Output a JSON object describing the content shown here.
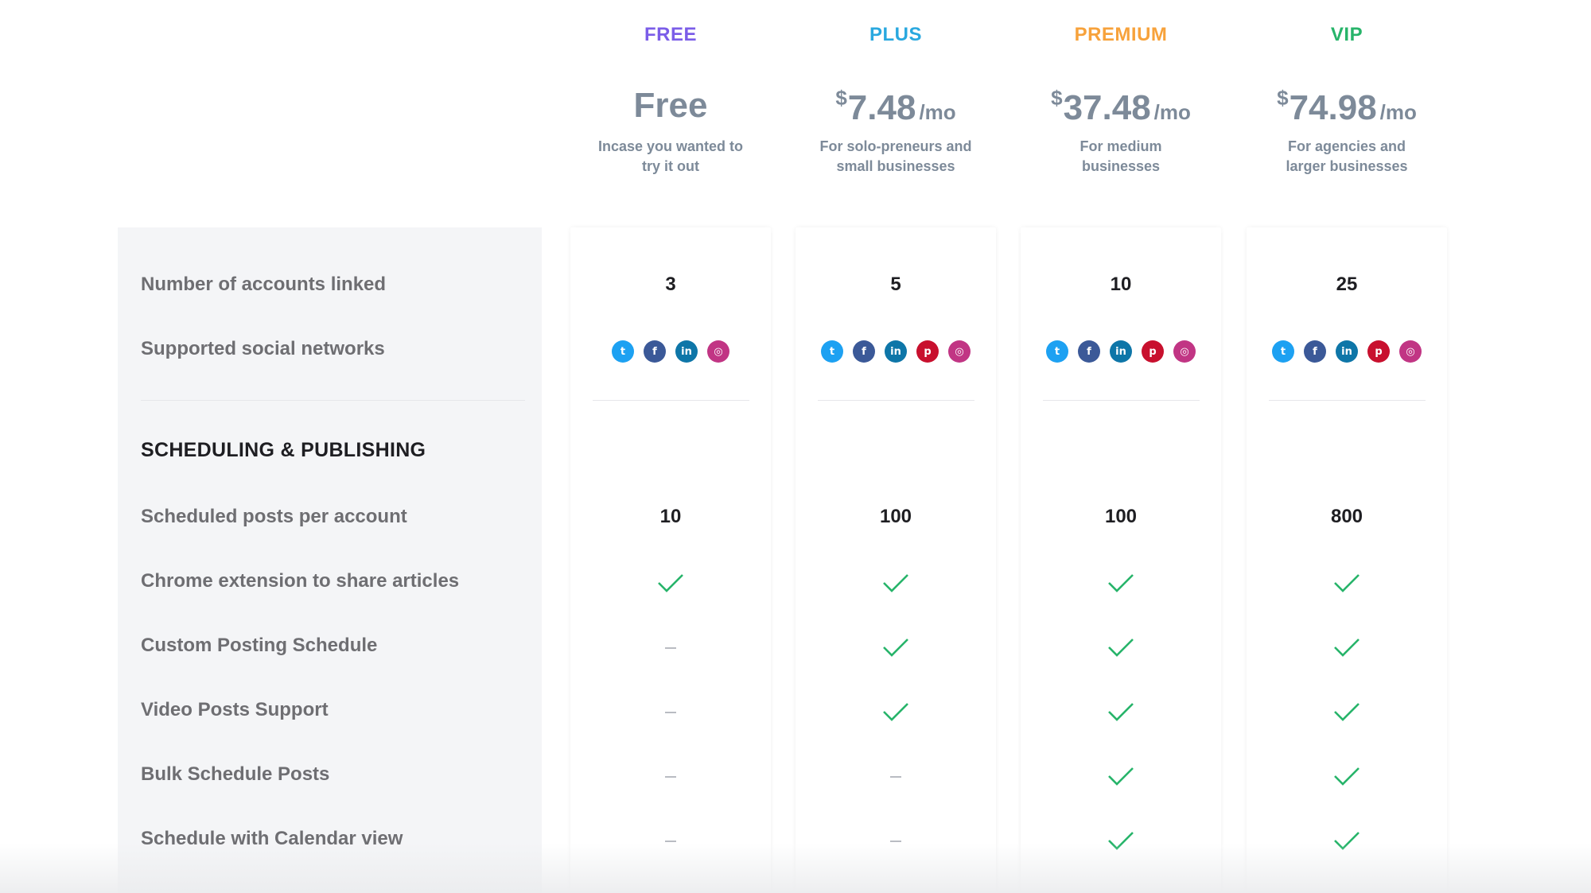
{
  "colors": {
    "free": "#7b5de8",
    "plus": "#29a8df",
    "premium": "#f7a23b",
    "vip": "#27b46a",
    "check": "#27b46a",
    "twitter": "#1da1f2",
    "facebook": "#3b5998",
    "linkedin": "#0e76a8",
    "pinterest": "#c8102e",
    "instagram": "#c13584"
  },
  "plans": [
    {
      "name": "FREE",
      "price_text": "Free",
      "currency": "",
      "amount": "",
      "period": "",
      "desc_line1": "Incase you wanted to",
      "desc_line2": "try it out"
    },
    {
      "name": "PLUS",
      "price_text": "",
      "currency": "$",
      "amount": "7.48",
      "period": "/mo",
      "desc_line1": "For solo-preneurs and",
      "desc_line2": "small businesses"
    },
    {
      "name": "PREMIUM",
      "price_text": "",
      "currency": "$",
      "amount": "37.48",
      "period": "/mo",
      "desc_line1": "For medium",
      "desc_line2": "businesses"
    },
    {
      "name": "VIP",
      "price_text": "",
      "currency": "$",
      "amount": "74.98",
      "period": "/mo",
      "desc_line1": "For agencies and",
      "desc_line2": "larger businesses"
    }
  ],
  "rows": {
    "accounts_linked": {
      "label": "Number of accounts linked",
      "values": [
        "3",
        "5",
        "10",
        "25"
      ]
    },
    "social_networks": {
      "label": "Supported social networks",
      "networks": [
        [
          "twitter-icon",
          "facebook-icon",
          "linkedin-icon",
          "instagram-icon"
        ],
        [
          "twitter-icon",
          "facebook-icon",
          "linkedin-icon",
          "pinterest-icon",
          "instagram-icon"
        ],
        [
          "twitter-icon",
          "facebook-icon",
          "linkedin-icon",
          "pinterest-icon",
          "instagram-icon"
        ],
        [
          "twitter-icon",
          "facebook-icon",
          "linkedin-icon",
          "pinterest-icon",
          "instagram-icon"
        ]
      ]
    },
    "section_heading": "SCHEDULING & PUBLISHING",
    "scheduled_posts": {
      "label": "Scheduled posts per account",
      "values": [
        "10",
        "100",
        "100",
        "800"
      ]
    },
    "chrome_extension": {
      "label": "Chrome extension to share articles",
      "values": [
        true,
        true,
        true,
        true
      ]
    },
    "custom_posting": {
      "label": "Custom Posting Schedule",
      "values": [
        false,
        true,
        true,
        true
      ]
    },
    "video_posts": {
      "label": "Video Posts Support",
      "values": [
        false,
        true,
        true,
        true
      ]
    },
    "bulk_schedule": {
      "label": "Bulk Schedule Posts",
      "values": [
        false,
        false,
        true,
        true
      ]
    },
    "calendar_view": {
      "label": "Schedule with Calendar view",
      "values": [
        false,
        false,
        true,
        true
      ]
    }
  }
}
